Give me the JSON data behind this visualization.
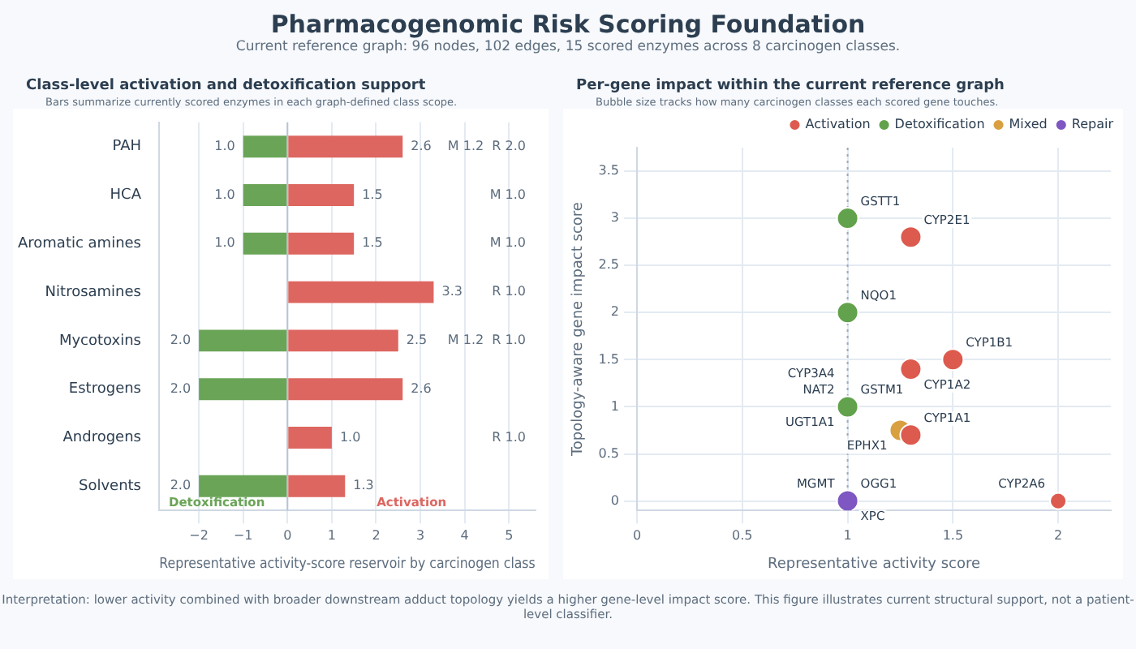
{
  "chart_data": [
    {
      "type": "other",
      "title": "Pharmacogenomic Risk Scoring Foundation",
      "subtitle": "Current reference graph: 96 nodes, 102 edges, 15 scored enzymes across 8 carcinogen classes.",
      "annotations": [
        "Interpretation: lower activity combined with broader downstream adduct topology yields a higher gene-level impact score. This figure illustrates current structural support, not a patient-level classifier."
      ]
    },
    {
      "type": "bar",
      "title": "Class-level activation and detoxification support",
      "subtitle": "Bars summarize currently scored enzymes in each graph-defined class scope.",
      "xlabel": "Representative activity-score reservoir by carcinogen class",
      "orientation": "horizontal",
      "categories": [
        "PAH",
        "HCA",
        "Aromatic amines",
        "Nitrosamines",
        "Mycotoxins",
        "Estrogens",
        "Androgens",
        "Solvents"
      ],
      "series": [
        {
          "name": "Detoxification",
          "color": "#6aa457",
          "base": [
            -1.0,
            -1.0,
            -1.0,
            null,
            -2.0,
            -2.0,
            null,
            -2.0
          ],
          "values": [
            1.0,
            1.0,
            1.0,
            null,
            2.0,
            2.0,
            null,
            2.0
          ],
          "value_labels": [
            "1.0",
            "1.0",
            "1.0",
            null,
            "2.0",
            "2.0",
            null,
            "2.0"
          ]
        },
        {
          "name": "Activation",
          "color": "#dd6660",
          "values": [
            2.6,
            1.5,
            1.5,
            3.3,
            2.5,
            2.6,
            1.0,
            1.3
          ],
          "value_labels": [
            "2.6",
            "1.5",
            "1.5",
            "3.3",
            "2.5",
            "2.6",
            "1.0",
            "1.3"
          ]
        }
      ],
      "xlim": [
        -2.9,
        5.6
      ],
      "xticks": [
        {
          "value": -2,
          "label": "−2"
        },
        {
          "value": -1,
          "label": "−1"
        },
        0,
        1,
        2,
        3,
        4,
        5
      ],
      "grid": "x",
      "legend": false,
      "annotations": [
        "M 1.2  R 2.0",
        "M 1.0",
        "M 1.0",
        "R 1.0",
        "M 1.2  R 1.0",
        null,
        "R 1.0",
        null
      ]
    },
    {
      "type": "bubble",
      "title": "Per-gene impact within the current reference graph",
      "subtitle": "Bubble size tracks how many carcinogen classes each scored gene touches.",
      "xlabel": "Representative activity score",
      "ylabel": "Topology-aware gene impact score",
      "series": [
        {
          "name": "Activation",
          "color": "#dd5a4e",
          "x": [
            1.3,
            1.5,
            1.3,
            1.3,
            2.0
          ],
          "values": [
            2.8,
            1.5,
            1.4,
            0.7,
            0.0
          ],
          "sizes": [
            1,
            1,
            1,
            1,
            0.6
          ]
        },
        {
          "name": "Detoxification",
          "color": "#62a24c",
          "x": [
            1.0,
            1.0,
            1.0
          ],
          "values": [
            3.0,
            2.0,
            1.0
          ],
          "sizes": [
            1,
            1,
            1
          ]
        },
        {
          "name": "Mixed",
          "color": "#d8a040",
          "x": [
            1.25
          ],
          "values": [
            0.75
          ],
          "sizes": [
            1
          ]
        },
        {
          "name": "Repair",
          "color": "#7e57c2",
          "x": [
            1.0
          ],
          "values": [
            0.0
          ],
          "sizes": [
            1
          ]
        }
      ],
      "xlim": [
        0,
        2.25
      ],
      "xticks": [
        0,
        0.5,
        1.0,
        1.5,
        2.0
      ],
      "ylim": [
        -0.1,
        3.75
      ],
      "yticks": [
        0,
        0.5,
        1.0,
        1.5,
        2.0,
        2.5,
        3.0,
        3.5
      ],
      "grid": true,
      "legend": "top right",
      "ref_lines": [
        {
          "axis": "x",
          "value": 1.0,
          "label": null,
          "color": "#9aa9bd",
          "line_style": "dotted"
        }
      ],
      "annotations": [
        {
          "text": "GSTT1",
          "x": 1.0,
          "y": 3.0
        },
        {
          "text": "CYP2E1",
          "x": 1.3,
          "y": 2.8
        },
        {
          "text": "NQO1",
          "x": 1.0,
          "y": 2.0
        },
        {
          "text": "CYP1B1",
          "x": 1.5,
          "y": 1.5
        },
        {
          "text": "CYP1A2",
          "x": 1.3,
          "y": 1.4
        },
        {
          "text": "GSTM1",
          "x": 1.0,
          "y": 1.0
        },
        {
          "text": "NAT2",
          "x": 1.0,
          "y": 1.0
        },
        {
          "text": "UGT1A1",
          "x": 1.0,
          "y": 1.0
        },
        {
          "text": "CYP3A4",
          "x": 1.0,
          "y": 1.0
        },
        {
          "text": "CYP1A1",
          "x": 1.3,
          "y": 0.7
        },
        {
          "text": "EPHX1",
          "x": 1.25,
          "y": 0.75
        },
        {
          "text": "OGG1",
          "x": 1.0,
          "y": 0.0
        },
        {
          "text": "XPC",
          "x": 1.0,
          "y": 0.0
        },
        {
          "text": "MGMT",
          "x": 1.0,
          "y": 0.0
        },
        {
          "text": "CYP2A6",
          "x": 2.0,
          "y": 0.0
        }
      ]
    }
  ]
}
